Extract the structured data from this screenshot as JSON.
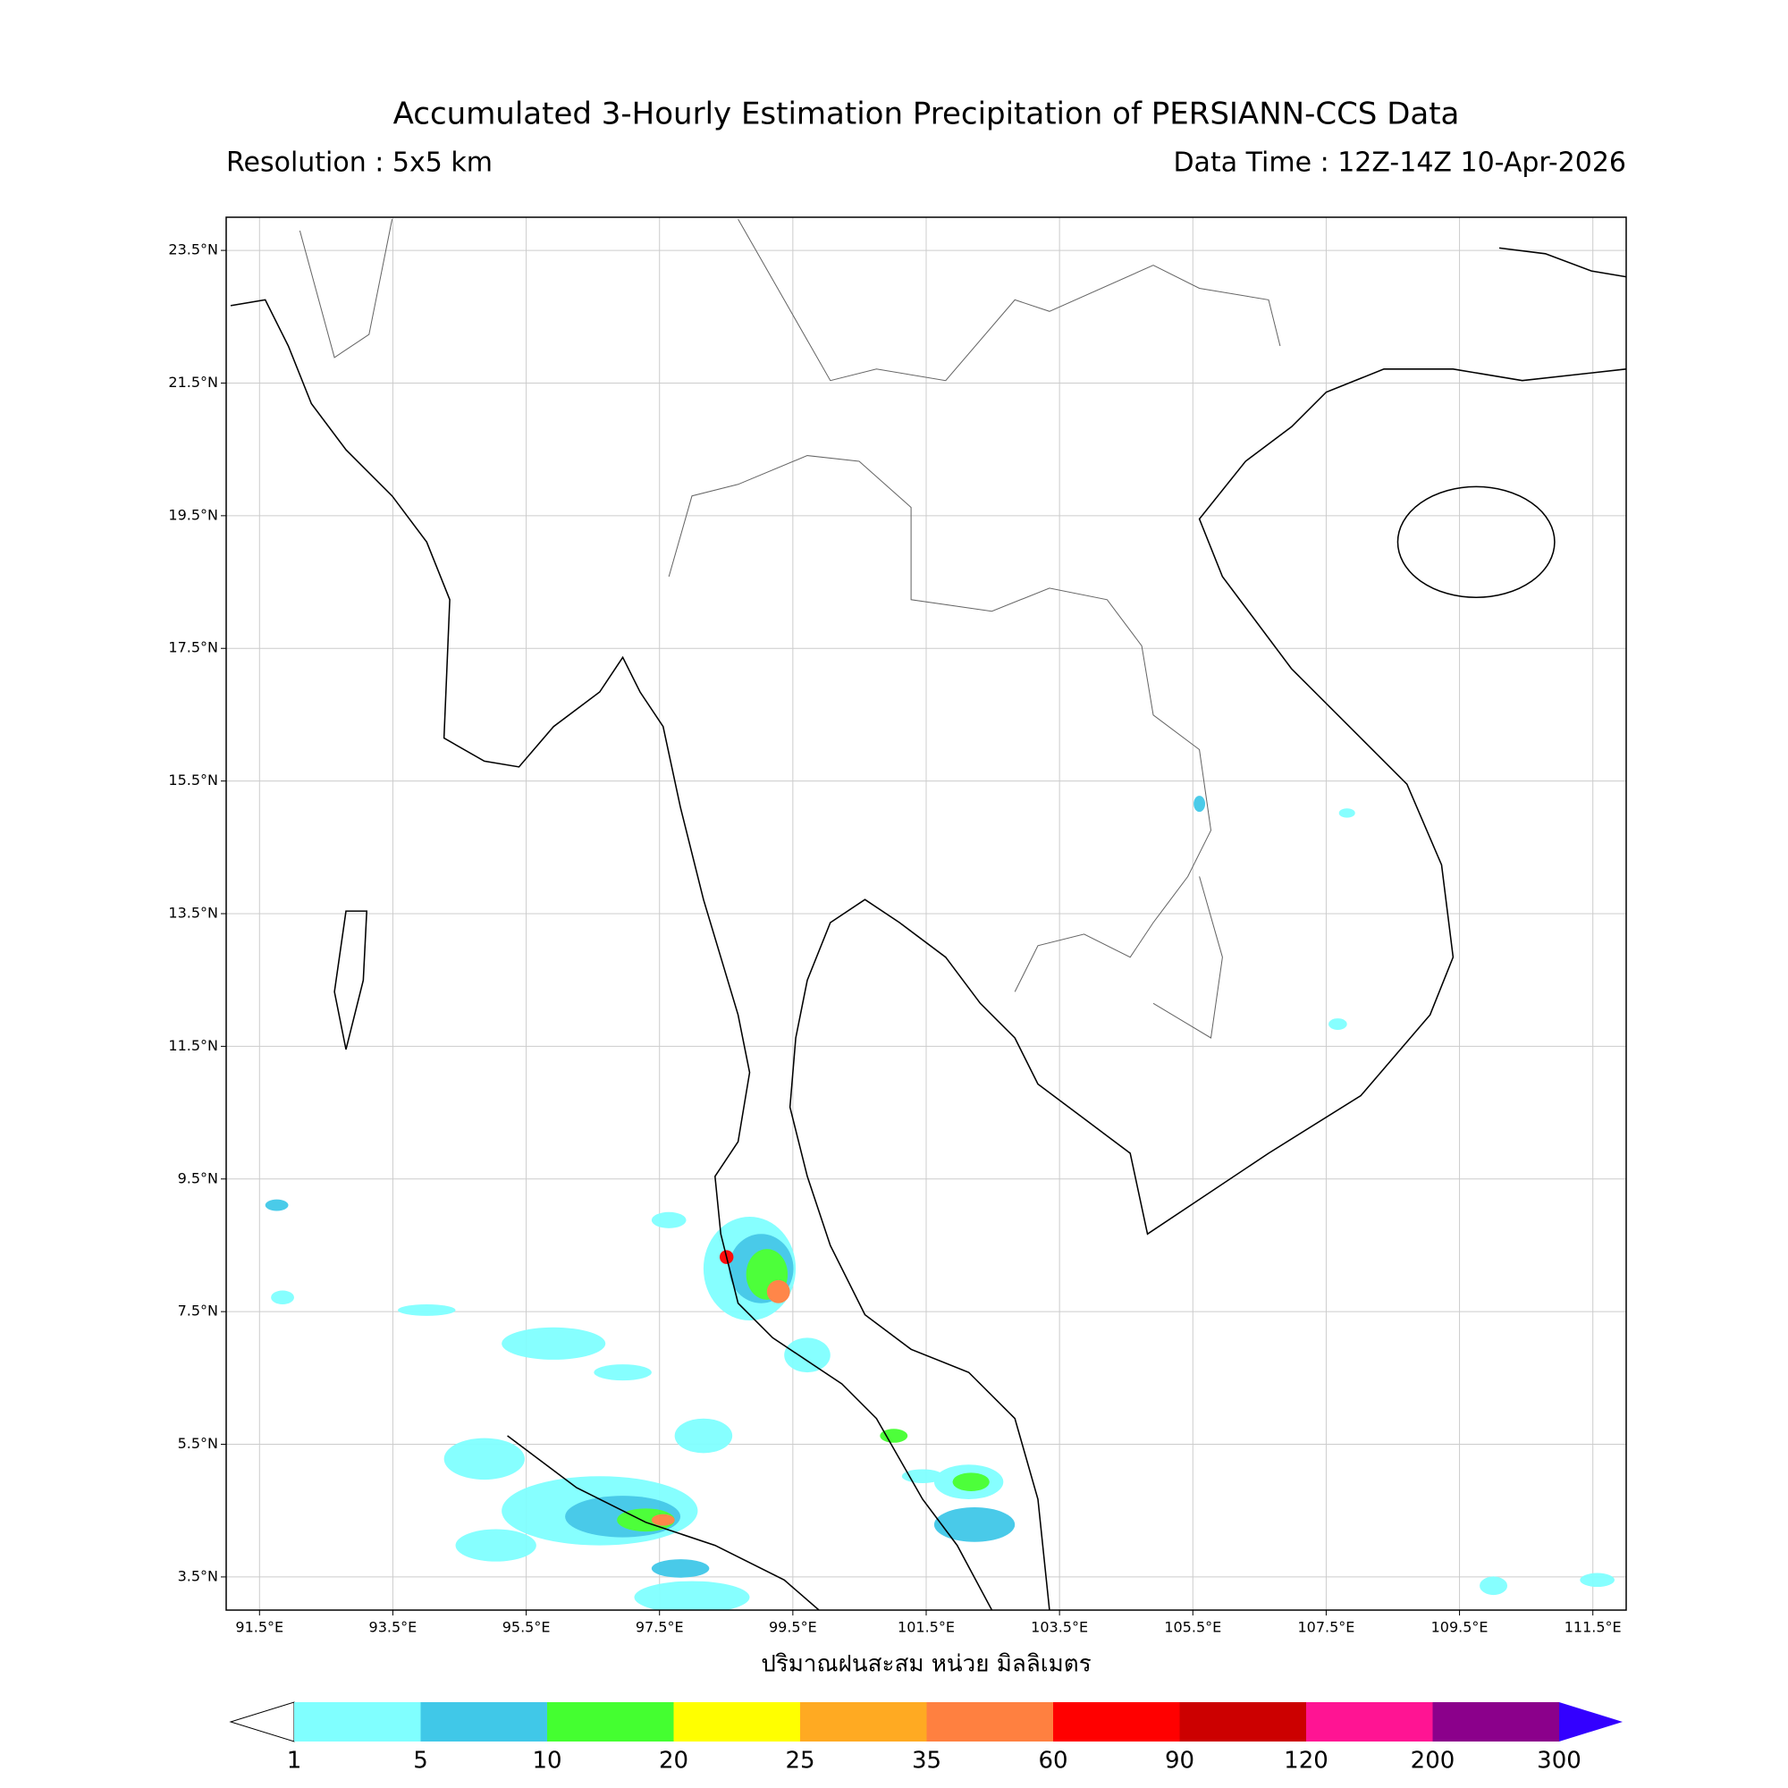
{
  "header": {
    "title": "Accumulated 3-Hourly Estimation Precipitation of PERSIANN-CCS Data",
    "resolution": "Resolution : 5x5 km",
    "data_time": "Data Time : 12Z-14Z 10-Apr-2026"
  },
  "map": {
    "xlim": [
      91,
      112
    ],
    "ylim": [
      3,
      24
    ],
    "grid": true,
    "xticks": [
      {
        "value": 91.5,
        "label": "91.5°E"
      },
      {
        "value": 93.5,
        "label": "93.5°E"
      },
      {
        "value": 95.5,
        "label": "95.5°E"
      },
      {
        "value": 97.5,
        "label": "97.5°E"
      },
      {
        "value": 99.5,
        "label": "99.5°E"
      },
      {
        "value": 101.5,
        "label": "101.5°E"
      },
      {
        "value": 103.5,
        "label": "103.5°E"
      },
      {
        "value": 105.5,
        "label": "105.5°E"
      },
      {
        "value": 107.5,
        "label": "107.5°E"
      },
      {
        "value": 109.5,
        "label": "109.5°E"
      },
      {
        "value": 111.5,
        "label": "111.5°E"
      }
    ],
    "yticks": [
      {
        "value": 3.5,
        "label": "3.5°N"
      },
      {
        "value": 5.5,
        "label": "5.5°N"
      },
      {
        "value": 7.5,
        "label": "7.5°N"
      },
      {
        "value": 9.5,
        "label": "9.5°N"
      },
      {
        "value": 11.5,
        "label": "11.5°N"
      },
      {
        "value": 13.5,
        "label": "13.5°N"
      },
      {
        "value": 15.5,
        "label": "15.5°N"
      },
      {
        "value": 17.5,
        "label": "17.5°N"
      },
      {
        "value": 19.5,
        "label": "19.5°N"
      },
      {
        "value": 21.5,
        "label": "21.5°N"
      },
      {
        "value": 23.5,
        "label": "23.5°N"
      }
    ],
    "xlabel": "ปริมาณฝนสะสม หน่วย มิลลิเมตร"
  },
  "colorbar": {
    "levels": [
      1,
      5,
      10,
      20,
      25,
      35,
      60,
      90,
      120,
      200,
      300
    ],
    "colors": [
      "#80ffff",
      "#40c8e8",
      "#44ff30",
      "#ffff00",
      "#ffaa22",
      "#ff8040",
      "#ff0000",
      "#cc0000",
      "#ff1493",
      "#8b008b"
    ],
    "under_color": "#ffffff",
    "over_color": "#3300ff"
  }
}
